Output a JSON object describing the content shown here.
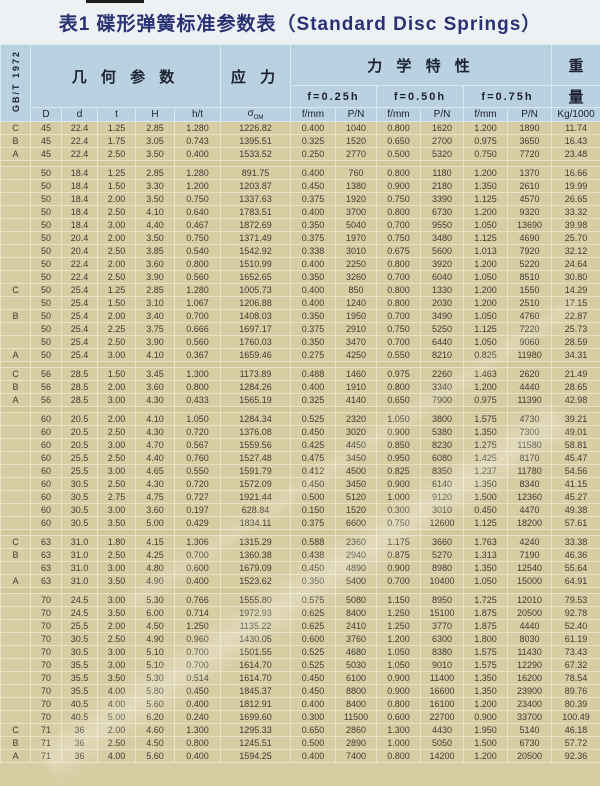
{
  "title": "表1 碟形弹簧标准参数表（Standard Disc Springs）",
  "standard": "GB/T 1972",
  "colors": {
    "title_text": "#2a3274",
    "title_band_bg": "#edf1f4",
    "header_bg": "#bad1e1",
    "body_bg": "#d7cca2",
    "grid_line": "#e9e2c8"
  },
  "header": {
    "groups": {
      "geometry": "几 何 参 数",
      "stress": "应 力",
      "mechanical": "力 学 特 性",
      "weight_top": "重",
      "weight_bottom": "量"
    },
    "deflections": [
      "f=0.25h",
      "f=0.50h",
      "f=0.75h"
    ],
    "columns": {
      "geometry": [
        "D",
        "d",
        "t",
        "H",
        "h/t"
      ],
      "stress_symbol": "σ",
      "stress_sub": "OM",
      "mech": [
        "f/mm",
        "P/N",
        "f/mm",
        "P/N",
        "f/mm",
        "P/N"
      ],
      "weight": "Kg/1000"
    }
  },
  "table": {
    "rows": [
      [
        "C",
        "45",
        "22.4",
        "1.25",
        "2.85",
        "1.280",
        "1226.82",
        "0.400",
        "1040",
        "0.800",
        "1620",
        "1.200",
        "1890",
        "11.74"
      ],
      [
        "B",
        "45",
        "22.4",
        "1.75",
        "3.05",
        "0.743",
        "1395.51",
        "0.325",
        "1520",
        "0.650",
        "2700",
        "0.975",
        "3650",
        "16.43"
      ],
      [
        "A",
        "45",
        "22.4",
        "2.50",
        "3.50",
        "0.400",
        "1533.52",
        "0.250",
        "2770",
        "0.500",
        "5320",
        "0.750",
        "7720",
        "23.48"
      ],
      "spacer",
      [
        "",
        "50",
        "18.4",
        "1.25",
        "2.85",
        "1.280",
        "891.75",
        "0.400",
        "760",
        "0.800",
        "1180",
        "1.200",
        "1370",
        "16.66"
      ],
      [
        "",
        "50",
        "18.4",
        "1.50",
        "3.30",
        "1.200",
        "1203.87",
        "0.450",
        "1380",
        "0.900",
        "2180",
        "1.350",
        "2610",
        "19.99"
      ],
      [
        "",
        "50",
        "18.4",
        "2.00",
        "3.50",
        "0.750",
        "1337.63",
        "0.375",
        "1920",
        "0.750",
        "3390",
        "1.125",
        "4570",
        "26.65"
      ],
      [
        "",
        "50",
        "18.4",
        "2.50",
        "4.10",
        "0.640",
        "1783.51",
        "0.400",
        "3700",
        "0.800",
        "6730",
        "1.200",
        "9320",
        "33.32"
      ],
      [
        "",
        "50",
        "18.4",
        "3.00",
        "4.40",
        "0.467",
        "1872.69",
        "0.350",
        "5040",
        "0.700",
        "9550",
        "1.050",
        "13690",
        "39.98"
      ],
      [
        "",
        "50",
        "20.4",
        "2.00",
        "3.50",
        "0.750",
        "1371.49",
        "0.375",
        "1970",
        "0.750",
        "3480",
        "1.125",
        "4690",
        "25.70"
      ],
      [
        "",
        "50",
        "20.4",
        "2.50",
        "3.85",
        "0.540",
        "1542.92",
        "0.338",
        "3010",
        "0.675",
        "5600",
        "1.013",
        "7920",
        "32.12"
      ],
      [
        "",
        "50",
        "22.4",
        "2.00",
        "3.60",
        "0.800",
        "1510.99",
        "0.400",
        "2250",
        "0.800",
        "3920",
        "1.200",
        "5220",
        "24.64"
      ],
      [
        "",
        "50",
        "22.4",
        "2.50",
        "3.90",
        "0.560",
        "1652.65",
        "0.350",
        "3260",
        "0.700",
        "6040",
        "1.050",
        "8510",
        "30.80"
      ],
      [
        "C",
        "50",
        "25.4",
        "1.25",
        "2.85",
        "1.280",
        "1005.73",
        "0.400",
        "850",
        "0.800",
        "1330",
        "1.200",
        "1550",
        "14.29"
      ],
      [
        "",
        "50",
        "25.4",
        "1.50",
        "3.10",
        "1.067",
        "1206.88",
        "0.400",
        "1240",
        "0.800",
        "2030",
        "1.200",
        "2510",
        "17.15"
      ],
      [
        "B",
        "50",
        "25.4",
        "2.00",
        "3.40",
        "0.700",
        "1408.03",
        "0.350",
        "1950",
        "0.700",
        "3490",
        "1.050",
        "4760",
        "22.87"
      ],
      [
        "",
        "50",
        "25.4",
        "2.25",
        "3.75",
        "0.666",
        "1697.17",
        "0.375",
        "2910",
        "0.750",
        "5250",
        "1.125",
        "7220",
        "25.73"
      ],
      [
        "",
        "50",
        "25.4",
        "2.50",
        "3.90",
        "0.560",
        "1760.03",
        "0.350",
        "3470",
        "0.700",
        "6440",
        "1.050",
        "9060",
        "28.59"
      ],
      [
        "A",
        "50",
        "25.4",
        "3.00",
        "4.10",
        "0.367",
        "1659.46",
        "0.275",
        "4250",
        "0.550",
        "8210",
        "0.825",
        "11980",
        "34.31"
      ],
      "spacer",
      [
        "C",
        "56",
        "28.5",
        "1.50",
        "3.45",
        "1.300",
        "1173.89",
        "0.488",
        "1460",
        "0.975",
        "2260",
        "1.463",
        "2620",
        "21.49"
      ],
      [
        "B",
        "56",
        "28.5",
        "2.00",
        "3.60",
        "0.800",
        "1284.26",
        "0.400",
        "1910",
        "0.800",
        "3340",
        "1.200",
        "4440",
        "28.65"
      ],
      [
        "A",
        "56",
        "28.5",
        "3.00",
        "4.30",
        "0.433",
        "1565.19",
        "0.325",
        "4140",
        "0.650",
        "7900",
        "0.975",
        "11390",
        "42.98"
      ],
      "spacer",
      [
        "",
        "60",
        "20.5",
        "2.00",
        "4.10",
        "1.050",
        "1284.34",
        "0.525",
        "2320",
        "1.050",
        "3800",
        "1.575",
        "4730",
        "39.21"
      ],
      [
        "",
        "60",
        "20.5",
        "2.50",
        "4.30",
        "0.720",
        "1376.08",
        "0.450",
        "3020",
        "0.900",
        "5380",
        "1.350",
        "7300",
        "49.01"
      ],
      [
        "",
        "60",
        "20.5",
        "3.00",
        "4.70",
        "0.567",
        "1559.56",
        "0.425",
        "4450",
        "0.850",
        "8230",
        "1.275",
        "11580",
        "58.81"
      ],
      [
        "",
        "60",
        "25.5",
        "2.50",
        "4.40",
        "0.760",
        "1527.48",
        "0.475",
        "3450",
        "0.950",
        "6080",
        "1.425",
        "8170",
        "45.47"
      ],
      [
        "",
        "60",
        "25.5",
        "3.00",
        "4.65",
        "0.550",
        "1591.79",
        "0.412",
        "4500",
        "0.825",
        "8350",
        "1.237",
        "11780",
        "54.56"
      ],
      [
        "",
        "60",
        "30.5",
        "2.50",
        "4.30",
        "0.720",
        "1572.09",
        "0.450",
        "3450",
        "0.900",
        "6140",
        "1.350",
        "8340",
        "41.15"
      ],
      [
        "",
        "60",
        "30.5",
        "2.75",
        "4.75",
        "0.727",
        "1921.44",
        "0.500",
        "5120",
        "1.000",
        "9120",
        "1.500",
        "12360",
        "45.27"
      ],
      [
        "",
        "60",
        "30.5",
        "3.00",
        "3.60",
        "0.197",
        "628.84",
        "0.150",
        "1520",
        "0.300",
        "3010",
        "0.450",
        "4470",
        "49.38"
      ],
      [
        "",
        "60",
        "30.5",
        "3.50",
        "5.00",
        "0.429",
        "1834.11",
        "0.375",
        "6600",
        "0.750",
        "12600",
        "1.125",
        "18200",
        "57.61"
      ],
      "spacer",
      [
        "C",
        "63",
        "31.0",
        "1.80",
        "4.15",
        "1.306",
        "1315.29",
        "0.588",
        "2360",
        "1.175",
        "3660",
        "1.763",
        "4240",
        "33.38"
      ],
      [
        "B",
        "63",
        "31.0",
        "2.50",
        "4.25",
        "0.700",
        "1360.38",
        "0.438",
        "2940",
        "0.875",
        "5270",
        "1.313",
        "7190",
        "46.36"
      ],
      [
        "",
        "63",
        "31.0",
        "3.00",
        "4.80",
        "0.600",
        "1679.09",
        "0.450",
        "4890",
        "0.900",
        "8980",
        "1.350",
        "12540",
        "55.64"
      ],
      [
        "A",
        "63",
        "31.0",
        "3.50",
        "4.90",
        "0.400",
        "1523.62",
        "0.350",
        "5400",
        "0.700",
        "10400",
        "1.050",
        "15000",
        "64.91"
      ],
      "spacer",
      [
        "",
        "70",
        "24.5",
        "3.00",
        "5.30",
        "0.766",
        "1555.80",
        "0.575",
        "5080",
        "1.150",
        "8950",
        "1.725",
        "12010",
        "79.53"
      ],
      [
        "",
        "70",
        "24.5",
        "3.50",
        "6.00",
        "0.714",
        "1972.93",
        "0.625",
        "8400",
        "1.250",
        "15100",
        "1.875",
        "20500",
        "92.78"
      ],
      [
        "",
        "70",
        "25.5",
        "2.00",
        "4.50",
        "1.250",
        "1135.22",
        "0.625",
        "2410",
        "1.250",
        "3770",
        "1.875",
        "4440",
        "52.40"
      ],
      [
        "",
        "70",
        "30.5",
        "2.50",
        "4.90",
        "0.960",
        "1430.05",
        "0.600",
        "3760",
        "1.200",
        "6300",
        "1.800",
        "8030",
        "61.19"
      ],
      [
        "",
        "70",
        "30.5",
        "3.00",
        "5.10",
        "0.700",
        "1501.55",
        "0.525",
        "4680",
        "1.050",
        "8380",
        "1.575",
        "11430",
        "73.43"
      ],
      [
        "",
        "70",
        "35.5",
        "3.00",
        "5.10",
        "0.700",
        "1614.70",
        "0.525",
        "5030",
        "1.050",
        "9010",
        "1.575",
        "12290",
        "67.32"
      ],
      [
        "",
        "70",
        "35.5",
        "3.50",
        "5.30",
        "0.514",
        "1614.70",
        "0.450",
        "6100",
        "0.900",
        "11400",
        "1.350",
        "16200",
        "78.54"
      ],
      [
        "",
        "70",
        "35.5",
        "4.00",
        "5.80",
        "0.450",
        "1845.37",
        "0.450",
        "8800",
        "0.900",
        "16600",
        "1.350",
        "23900",
        "89.76"
      ],
      [
        "",
        "70",
        "40.5",
        "4.00",
        "5.60",
        "0.400",
        "1812.91",
        "0.400",
        "8400",
        "0.800",
        "16100",
        "1.200",
        "23400",
        "80.39"
      ],
      [
        "",
        "70",
        "40.5",
        "5.00",
        "6.20",
        "0.240",
        "1699.60",
        "0.300",
        "11500",
        "0.600",
        "22700",
        "0.900",
        "33700",
        "100.49"
      ],
      [
        "C",
        "71",
        "36",
        "2.00",
        "4.60",
        "1.300",
        "1295.33",
        "0.650",
        "2860",
        "1.300",
        "4430",
        "1.950",
        "5140",
        "46.18"
      ],
      [
        "B",
        "71",
        "36",
        "2.50",
        "4.50",
        "0.800",
        "1245.51",
        "0.500",
        "2890",
        "1.000",
        "5050",
        "1.500",
        "6730",
        "57.72"
      ],
      [
        "A",
        "71",
        "36",
        "4.00",
        "5.60",
        "0.400",
        "1594.25",
        "0.400",
        "7400",
        "0.800",
        "14200",
        "1.200",
        "20500",
        "92.36"
      ]
    ]
  }
}
